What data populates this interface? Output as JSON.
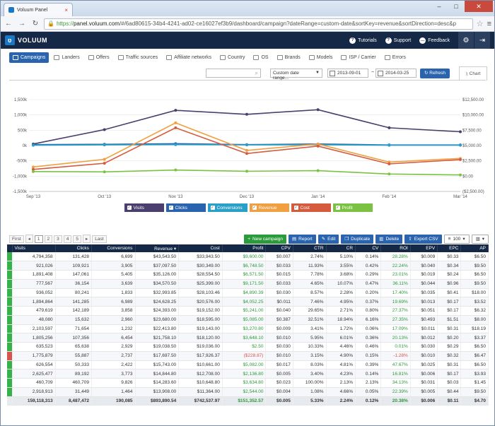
{
  "browser": {
    "tab_title": "Voluum Panel",
    "tab_close": "×",
    "url_https": "https://",
    "url_host": "panel.voluum.com",
    "url_rest": "/#/6ad80615-34b4-4241-ad02-ce16027ef3b9/dashboard/campaign?dateRange=custom-date&sortKey=revenue&sortDirection=desc&p"
  },
  "header": {
    "logo": "VOLUUM",
    "tutorials": "Tutorials",
    "support": "Support",
    "feedback": "Feedback"
  },
  "entity_tabs": [
    "Campaigns",
    "Landers",
    "Offers",
    "Traffic sources",
    "Affiliate networks",
    "Country",
    "OS",
    "Brands",
    "Models",
    "ISP / Carrier",
    "Errors"
  ],
  "toolbar": {
    "date_range": "Custom date range...",
    "date_from": "2013-09-01",
    "date_sep": "~",
    "date_to": "2014-03-25",
    "refresh": "Refresh",
    "chart_tab": "Chart"
  },
  "chart_data": {
    "type": "line",
    "x": [
      "Sep '13",
      "Oct '13",
      "Nov '13",
      "Dec '13",
      "Jan '14",
      "Feb '14",
      "Mar '14"
    ],
    "y_left_ticks": [
      "1,500k",
      "1,000k",
      "500k",
      "0k",
      "-500k",
      "-1,000k",
      "-1,500k"
    ],
    "y_right_ticks": [
      "$12,500.00",
      "$10,000.00",
      "$7,500.00",
      "$5,000.00",
      "$2,500.00",
      "$0.00",
      "($2,500.00)"
    ],
    "ylim_left": [
      -1500,
      1500
    ],
    "series": [
      {
        "name": "Visits",
        "color": "#4a3f6e",
        "values": [
          50,
          520,
          1150,
          1020,
          1170,
          580,
          450
        ]
      },
      {
        "name": "Clicks",
        "color": "#2a64ae",
        "values": [
          30,
          40,
          60,
          30,
          50,
          20,
          20
        ]
      },
      {
        "name": "Conversions",
        "color": "#2aa0c9",
        "values": [
          10,
          20,
          30,
          20,
          25,
          10,
          10
        ]
      },
      {
        "name": "Revenue",
        "color": "#f0a040",
        "values": [
          -700,
          -450,
          740,
          -160,
          50,
          -540,
          -420
        ]
      },
      {
        "name": "Cost",
        "color": "#d55b3e",
        "values": [
          -780,
          -580,
          580,
          -260,
          -20,
          -600,
          -460
        ]
      },
      {
        "name": "Profit",
        "color": "#7cc242",
        "values": [
          -850,
          -860,
          -800,
          -840,
          -820,
          -930,
          -960
        ]
      }
    ]
  },
  "pagination": {
    "first": "First",
    "prev": "◂",
    "pages": [
      "1",
      "2",
      "3",
      "4",
      "5"
    ],
    "next": "▸",
    "last": "Last"
  },
  "actions": {
    "new_campaign": "New campaign",
    "report": "Report",
    "edit": "Edit",
    "duplicate": "Duplicate",
    "delete": "Delete",
    "export": "Export CSV",
    "page_size": "100"
  },
  "table": {
    "columns": [
      "Visits",
      "Clicks",
      "Conversions",
      "Revenue ▾",
      "Cost",
      "Profit",
      "CPV",
      "CTR",
      "CR",
      "CV",
      "ROI",
      "EPV",
      "EPC",
      "AP"
    ],
    "rows": [
      [
        "4,794,358",
        "131,428",
        "6,699",
        "$43,543.50",
        "$33,943.50",
        "$9,600.00",
        "$0.007",
        "2.74%",
        "5.10%",
        "0.14%",
        "28.28%",
        "$0.009",
        "$0.33",
        "$6.50"
      ],
      [
        "921,026",
        "109,921",
        "3,905",
        "$37,097.50",
        "$30,349.00",
        "$6,748.50",
        "$0.033",
        "11.93%",
        "3.55%",
        "0.42%",
        "22.24%",
        "$0.040",
        "$0.34",
        "$9.50"
      ],
      [
        "1,891,408",
        "147,061",
        "5,405",
        "$35,126.00",
        "$28,554.50",
        "$6,571.50",
        "$0.015",
        "7.78%",
        "3.68%",
        "0.29%",
        "23.01%",
        "$0.019",
        "$0.24",
        "$6.50"
      ],
      [
        "777,567",
        "36,154",
        "3,639",
        "$34,570.50",
        "$25,399.00",
        "$9,171.50",
        "$0.033",
        "4.65%",
        "10.07%",
        "0.47%",
        "36.11%",
        "$0.044",
        "$0.96",
        "$9.50"
      ],
      [
        "936,052",
        "80,241",
        "1,833",
        "$32,993.85",
        "$28,103.46",
        "$4,890.39",
        "$0.030",
        "8.57%",
        "2.28%",
        "0.20%",
        "17.40%",
        "$0.035",
        "$0.41",
        "$18.00"
      ],
      [
        "1,894,864",
        "141,285",
        "6,989",
        "$24,628.25",
        "$20,576.00",
        "$4,052.25",
        "$0.011",
        "7.46%",
        "4.95%",
        "0.37%",
        "19.69%",
        "$0.013",
        "$0.17",
        "$3.52"
      ],
      [
        "479,619",
        "142,189",
        "3,858",
        "$24,393.00",
        "$19,152.00",
        "$5,241.00",
        "$0.040",
        "29.65%",
        "2.71%",
        "0.80%",
        "27.37%",
        "$0.051",
        "$0.17",
        "$6.32"
      ],
      [
        "48,080",
        "15,632",
        "2,960",
        "$23,680.00",
        "$18,595.00",
        "$5,085.00",
        "$0.387",
        "32.51%",
        "18.94%",
        "6.16%",
        "27.35%",
        "$0.493",
        "$1.51",
        "$8.00"
      ],
      [
        "2,103,597",
        "71,654",
        "1,232",
        "$22,413.80",
        "$19,143.00",
        "$3,270.80",
        "$0.009",
        "3.41%",
        "1.72%",
        "0.06%",
        "17.09%",
        "$0.011",
        "$0.31",
        "$18.19"
      ],
      [
        "1,805,256",
        "107,356",
        "6,454",
        "$21,758.10",
        "$18,120.00",
        "$3,648.10",
        "$0.010",
        "5.95%",
        "6.01%",
        "0.36%",
        "20.13%",
        "$0.012",
        "$0.20",
        "$3.37"
      ],
      [
        "635,523",
        "65,638",
        "2,929",
        "$19,038.50",
        "$19,036.00",
        "$2.50",
        "$0.030",
        "10.33%",
        "4.46%",
        "0.46%",
        "0.01%",
        "$0.030",
        "$0.29",
        "$6.50"
      ],
      [
        "1,775,879",
        "55,887",
        "2,737",
        "$17,697.50",
        "$17,926.37",
        "($228.87)",
        "$0.010",
        "3.15%",
        "4.90%",
        "0.15%",
        "-1.28%",
        "$0.010",
        "$0.32",
        "$6.47"
      ],
      [
        "626,554",
        "50,333",
        "2,422",
        "$15,743.00",
        "$10,661.00",
        "$5,082.00",
        "$0.017",
        "8.03%",
        "4.81%",
        "0.39%",
        "47.67%",
        "$0.025",
        "$0.31",
        "$6.50"
      ],
      [
        "2,625,477",
        "89,192",
        "3,773",
        "$14,844.80",
        "$12,708.00",
        "$2,136.80",
        "$0.005",
        "3.40%",
        "4.23%",
        "0.14%",
        "16.81%",
        "$0.006",
        "$0.17",
        "$3.93"
      ],
      [
        "460,709",
        "460,709",
        "9,826",
        "$14,283.60",
        "$10,648.80",
        "$3,634.80",
        "$0.023",
        "100.00%",
        "2.13%",
        "2.13%",
        "34.13%",
        "$0.031",
        "$0.03",
        "$1.45"
      ],
      [
        "2,918,913",
        "31,449",
        "1,464",
        "$13,908.00",
        "$11,364.00",
        "$2,544.00",
        "$0.004",
        "1.08%",
        "4.66%",
        "0.05%",
        "22.39%",
        "$0.005",
        "$0.44",
        "$9.50"
      ]
    ],
    "row_status": [
      "pos",
      "pos",
      "pos",
      "pos",
      "pos",
      "pos",
      "pos",
      "pos",
      "pos",
      "pos",
      "pos",
      "neg",
      "pos",
      "pos",
      "pos",
      "pos"
    ],
    "total": [
      "159,118,313",
      "8,487,472",
      "190,085",
      "$893,890.54",
      "$742,537.97",
      "$151,352.57",
      "$0.005",
      "5.33%",
      "2.24%",
      "0.12%",
      "20.38%",
      "$0.006",
      "$0.11",
      "$4.70"
    ]
  }
}
